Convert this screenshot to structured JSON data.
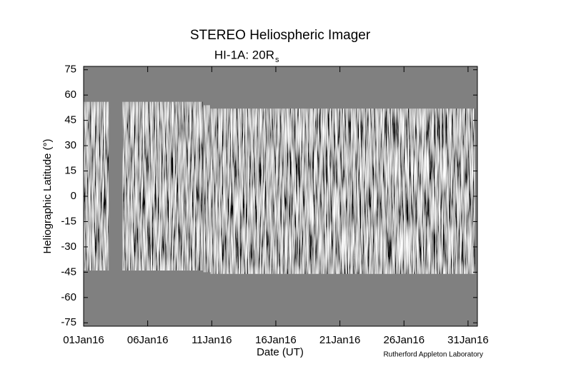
{
  "chart_data": {
    "type": "jmap",
    "title": "STEREO Heliospheric Imager",
    "subtitle": "HI-1A: 20R",
    "subtitle_subscript": "s",
    "x_label": "Date (UT)",
    "y_label": "Heliographic Latitude (°)",
    "credit": "Rutherford Appleton Laboratory",
    "background_color": "#808080",
    "xlim": [
      "2016-01-01T00:00",
      "2016-01-31T17:30"
    ],
    "xticks": [
      {
        "value": "2016-01-01T00:00",
        "label": "01Jan16"
      },
      {
        "value": "2016-01-06T00:00",
        "label": "06Jan16"
      },
      {
        "value": "2016-01-11T00:00",
        "label": "11Jan16"
      },
      {
        "value": "2016-01-16T00:00",
        "label": "16Jan16"
      },
      {
        "value": "2016-01-21T00:00",
        "label": "21Jan16"
      },
      {
        "value": "2016-01-26T00:00",
        "label": "26Jan16"
      },
      {
        "value": "2016-01-31T00:00",
        "label": "31Jan16"
      }
    ],
    "ylim": [
      -77,
      77
    ],
    "yticks": [
      75,
      60,
      45,
      30,
      15,
      0,
      -15,
      -30,
      -45,
      -60,
      -75
    ],
    "segments": [
      {
        "start": "2016-01-01T00:00",
        "end": "2016-01-02T23:00",
        "lat_top": 56,
        "lat_bottom": -44
      },
      {
        "start": "2016-01-04T01:00",
        "end": "2016-01-10T07:00",
        "lat_top": 56,
        "lat_bottom": -44
      },
      {
        "start": "2016-01-10T09:00",
        "end": "2016-01-10T22:00",
        "lat_top": 54,
        "lat_bottom": -45
      },
      {
        "start": "2016-01-10T22:00",
        "end": "2016-01-31T13:00",
        "lat_top": 52,
        "lat_bottom": -46
      }
    ]
  }
}
